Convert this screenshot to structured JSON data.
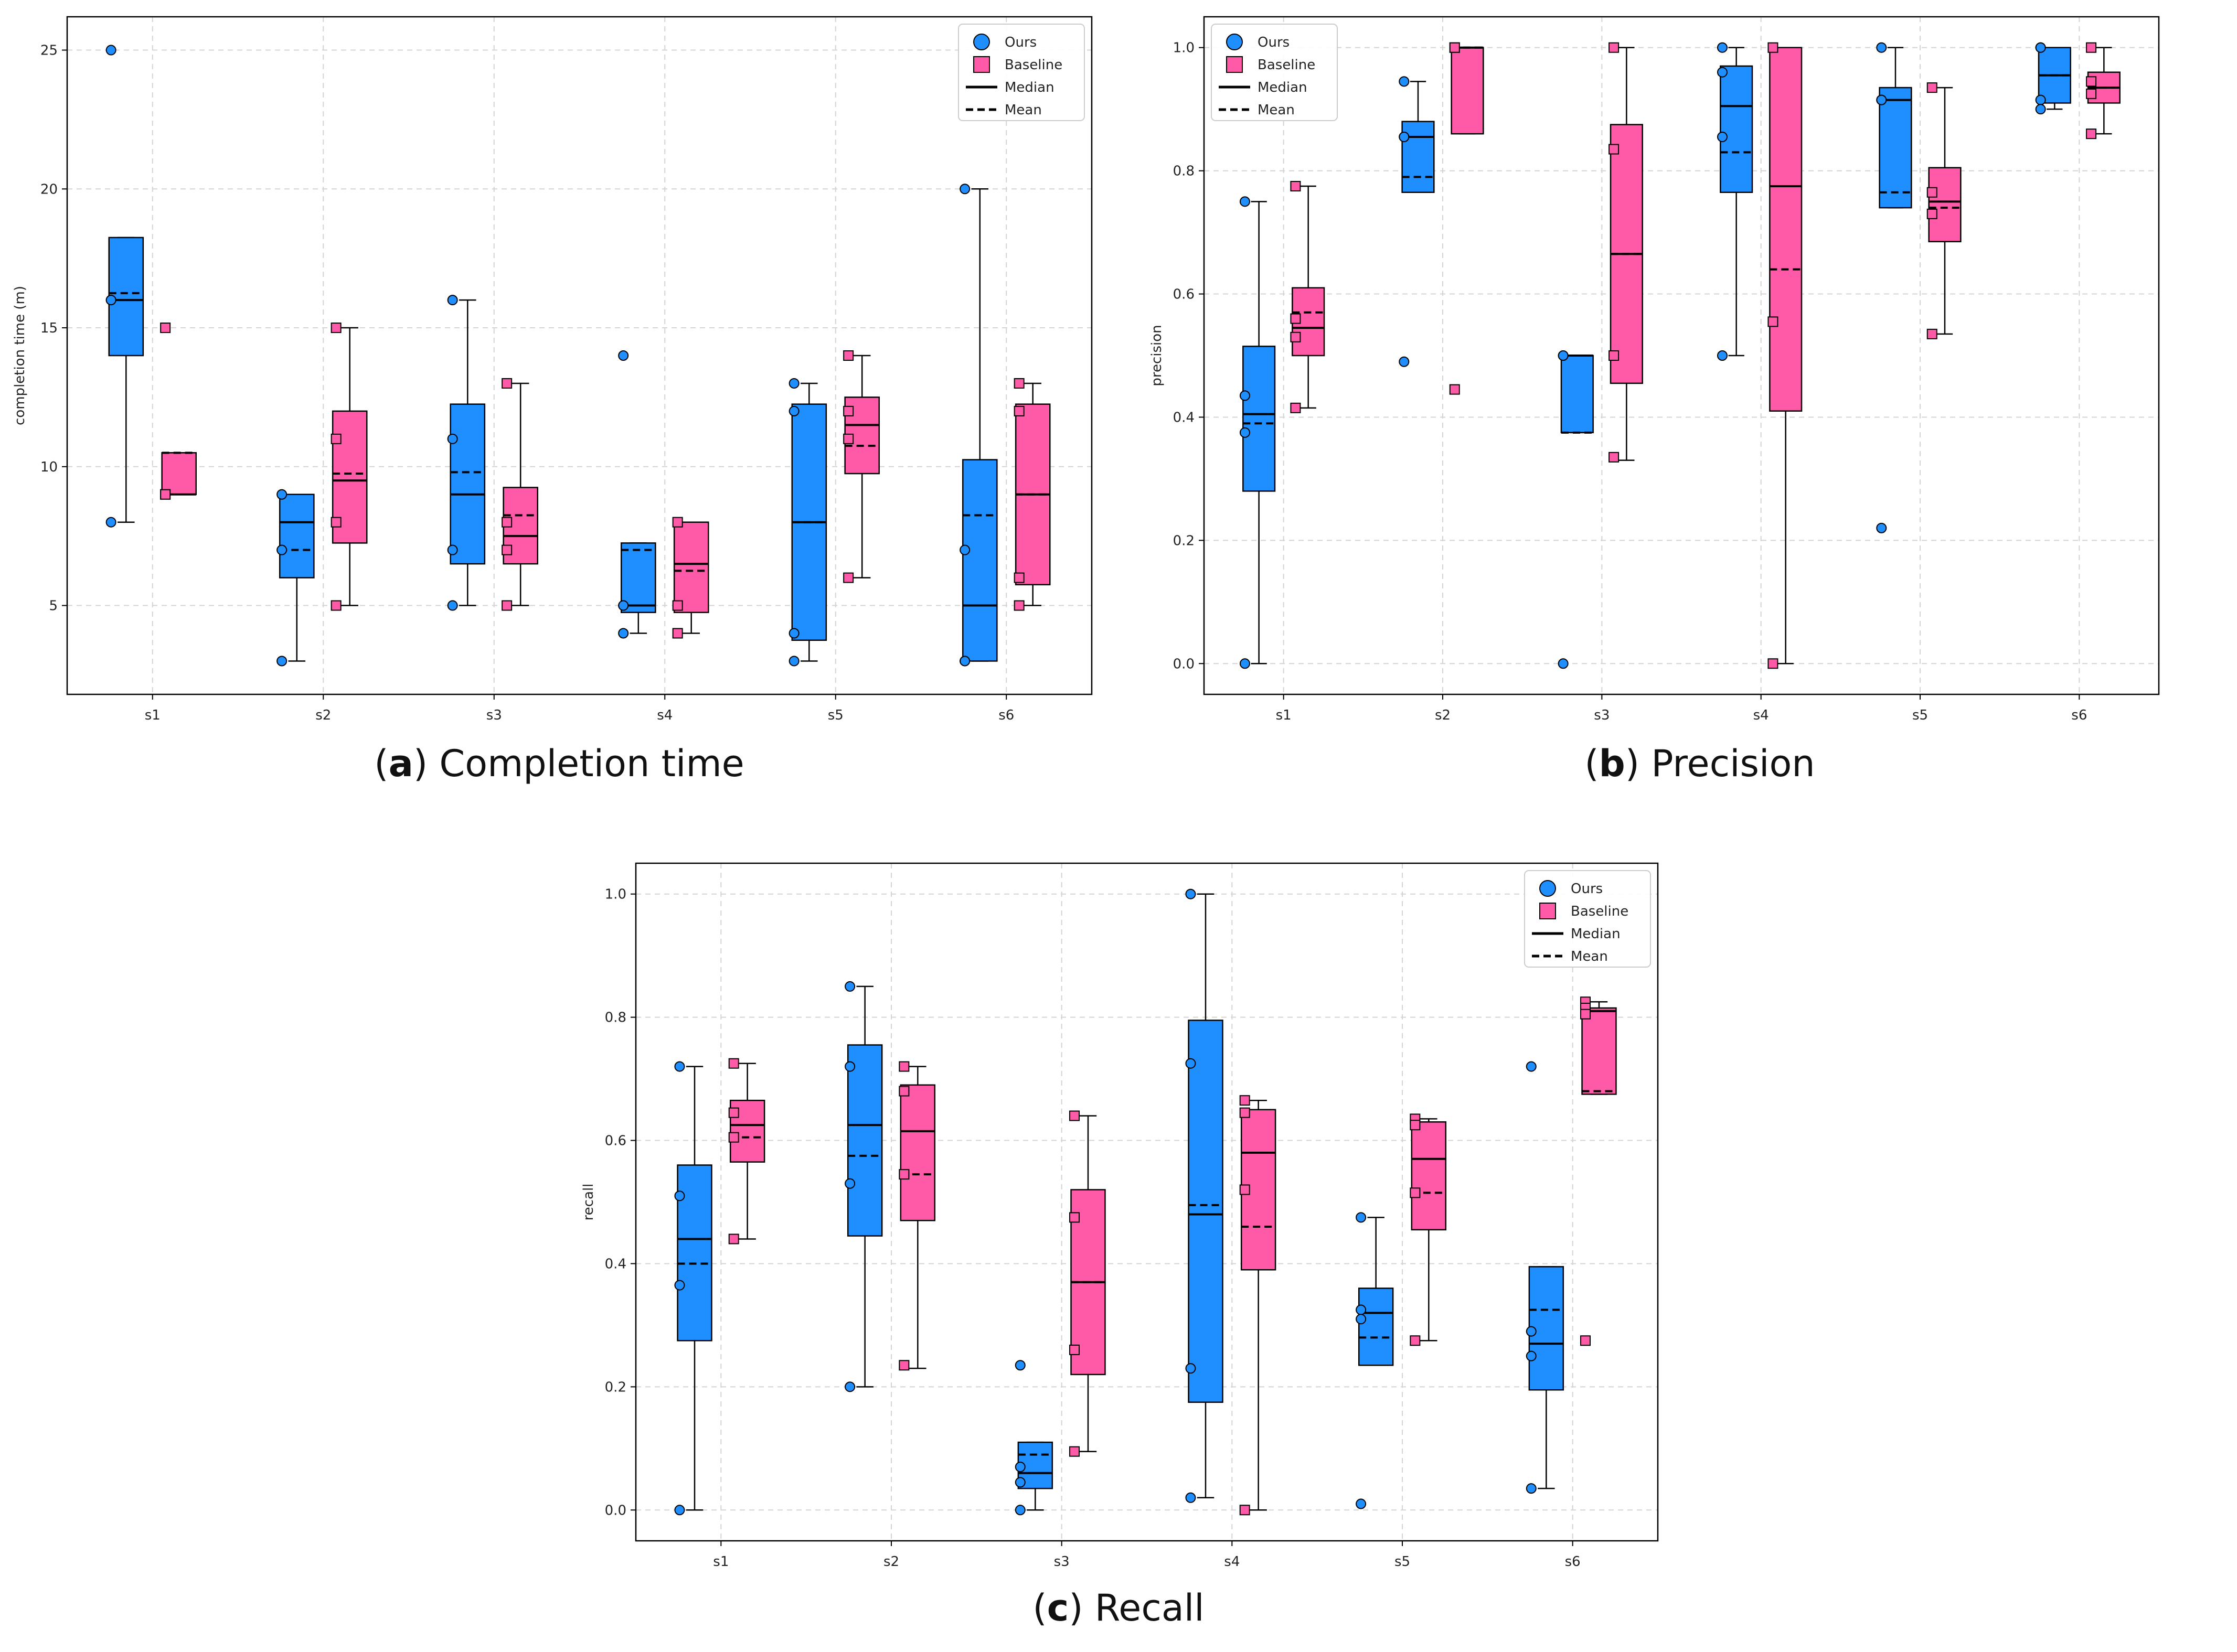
{
  "colors": {
    "ours": "#1f8fff",
    "baseline": "#ff5aa8",
    "grid": "#d4d4d4",
    "axis": "#000000"
  },
  "legend": {
    "ours": "Ours",
    "baseline": "Baseline",
    "median": "Median",
    "mean": "Mean"
  },
  "chart_data": [
    {
      "type": "box",
      "caption_letter": "a",
      "caption_text": " Completion time",
      "ylabel": "completion time (m)",
      "categories": [
        "s1",
        "s2",
        "s3",
        "s4",
        "s5",
        "s6"
      ],
      "ylim": [
        1.8,
        26.2
      ],
      "yticks": [
        5,
        10,
        15,
        20,
        25
      ],
      "yticklabels": [
        "5",
        "10",
        "15",
        "20",
        "25"
      ],
      "grid": true,
      "legend_loc": "top-right",
      "series": [
        {
          "name": "Ours",
          "boxes": [
            {
              "q1": 14,
              "median": 16,
              "q3": 18.25,
              "whislo": 8,
              "whishi": 18.25,
              "mean": 16.25,
              "points": [
                25,
                16,
                16,
                8
              ]
            },
            {
              "q1": 6,
              "median": 8,
              "q3": 9,
              "whislo": 3,
              "whishi": 9,
              "mean": 7,
              "points": [
                9,
                7,
                3
              ]
            },
            {
              "q1": 6.5,
              "median": 9,
              "q3": 12.25,
              "whislo": 5,
              "whishi": 16,
              "mean": 9.8,
              "points": [
                16,
                11,
                7,
                5
              ]
            },
            {
              "q1": 4.75,
              "median": 5,
              "q3": 7.25,
              "whislo": 4,
              "whishi": 7.25,
              "mean": 7,
              "points": [
                14,
                5,
                5,
                4
              ]
            },
            {
              "q1": 3.75,
              "median": 8,
              "q3": 12.25,
              "whislo": 3,
              "whishi": 13,
              "mean": 8,
              "points": [
                13,
                12,
                4,
                3
              ]
            },
            {
              "q1": 3,
              "median": 5,
              "q3": 10.25,
              "whislo": 3,
              "whishi": 20,
              "mean": 8.25,
              "points": [
                20,
                7,
                3,
                3
              ]
            }
          ]
        },
        {
          "name": "Baseline",
          "boxes": [
            {
              "q1": 9,
              "median": 9,
              "q3": 10.5,
              "whislo": 9,
              "whishi": 10.5,
              "mean": 10.5,
              "points": [
                15,
                9,
                9
              ]
            },
            {
              "q1": 7.25,
              "median": 9.5,
              "q3": 12,
              "whislo": 5,
              "whishi": 15,
              "mean": 9.75,
              "points": [
                15,
                11,
                8,
                5
              ]
            },
            {
              "q1": 6.5,
              "median": 7.5,
              "q3": 9.25,
              "whislo": 5,
              "whishi": 13,
              "mean": 8.25,
              "points": [
                13,
                8,
                7,
                5
              ]
            },
            {
              "q1": 4.75,
              "median": 6.5,
              "q3": 8,
              "whislo": 4,
              "whishi": 8,
              "mean": 6.25,
              "points": [
                8,
                5,
                4
              ]
            },
            {
              "q1": 9.75,
              "median": 11.5,
              "q3": 12.5,
              "whislo": 6,
              "whishi": 14,
              "mean": 10.75,
              "points": [
                14,
                12,
                11,
                6
              ]
            },
            {
              "q1": 5.75,
              "median": 9,
              "q3": 12.25,
              "whislo": 5,
              "whishi": 13,
              "mean": 9,
              "points": [
                13,
                12,
                6,
                5
              ]
            }
          ]
        }
      ]
    },
    {
      "type": "box",
      "caption_letter": "b",
      "caption_text": " Precision",
      "ylabel": "precision",
      "categories": [
        "s1",
        "s2",
        "s3",
        "s4",
        "s5",
        "s6"
      ],
      "ylim": [
        -0.05,
        1.05
      ],
      "yticks": [
        0,
        0.2,
        0.4,
        0.6,
        0.8,
        1.0
      ],
      "yticklabels": [
        "0.0",
        "0.2",
        "0.4",
        "0.6",
        "0.8",
        "1.0"
      ],
      "grid": true,
      "legend_loc": "top-left",
      "series": [
        {
          "name": "Ours",
          "boxes": [
            {
              "q1": 0.28,
              "median": 0.405,
              "q3": 0.515,
              "whislo": 0,
              "whishi": 0.75,
              "mean": 0.39,
              "points": [
                0.75,
                0.435,
                0.375,
                0
              ]
            },
            {
              "q1": 0.765,
              "median": 0.855,
              "q3": 0.88,
              "whislo": 0.765,
              "whishi": 0.945,
              "mean": 0.79,
              "points": [
                0.945,
                0.855,
                0.855,
                0.49
              ]
            },
            {
              "q1": 0.375,
              "median": 0.5,
              "q3": 0.5,
              "whislo": 0.375,
              "whishi": 0.5,
              "mean": 0.375,
              "points": [
                0.5,
                0.5,
                0
              ]
            },
            {
              "q1": 0.765,
              "median": 0.905,
              "q3": 0.97,
              "whislo": 0.5,
              "whishi": 1.0,
              "mean": 0.83,
              "points": [
                1.0,
                0.96,
                0.855,
                0.5
              ]
            },
            {
              "q1": 0.74,
              "median": 0.915,
              "q3": 0.935,
              "whislo": 0.74,
              "whishi": 1.0,
              "mean": 0.765,
              "points": [
                1.0,
                0.915,
                0.915,
                0.22
              ]
            },
            {
              "q1": 0.91,
              "median": 0.955,
              "q3": 1.0,
              "whislo": 0.9,
              "whishi": 1.0,
              "mean": 0.955,
              "points": [
                1.0,
                1.0,
                0.915,
                0.9
              ]
            }
          ]
        },
        {
          "name": "Baseline",
          "boxes": [
            {
              "q1": 0.5,
              "median": 0.545,
              "q3": 0.61,
              "whislo": 0.415,
              "whishi": 0.775,
              "mean": 0.57,
              "points": [
                0.775,
                0.56,
                0.53,
                0.415
              ]
            },
            {
              "q1": 0.86,
              "median": 1.0,
              "q3": 1.0,
              "whislo": 0.86,
              "whishi": 1.0,
              "mean": 1.0,
              "points": [
                1.0,
                1.0,
                0.445
              ]
            },
            {
              "q1": 0.455,
              "median": 0.665,
              "q3": 0.875,
              "whislo": 0.33,
              "whishi": 1.0,
              "mean": 0.665,
              "points": [
                1.0,
                0.835,
                0.5,
                0.335
              ]
            },
            {
              "q1": 0.41,
              "median": 0.775,
              "q3": 1.0,
              "whislo": 0,
              "whishi": 1.0,
              "mean": 0.64,
              "points": [
                1.0,
                0.555,
                0
              ]
            },
            {
              "q1": 0.685,
              "median": 0.75,
              "q3": 0.805,
              "whislo": 0.535,
              "whishi": 0.935,
              "mean": 0.74,
              "points": [
                0.935,
                0.765,
                0.73,
                0.535
              ]
            },
            {
              "q1": 0.91,
              "median": 0.935,
              "q3": 0.96,
              "whislo": 0.86,
              "whishi": 1.0,
              "mean": 0.935,
              "points": [
                1.0,
                0.945,
                0.925,
                0.86
              ]
            }
          ]
        }
      ]
    },
    {
      "type": "box",
      "caption_letter": "c",
      "caption_text": " Recall",
      "ylabel": "recall",
      "categories": [
        "s1",
        "s2",
        "s3",
        "s4",
        "s5",
        "s6"
      ],
      "ylim": [
        -0.05,
        1.05
      ],
      "yticks": [
        0,
        0.2,
        0.4,
        0.6,
        0.8,
        1.0
      ],
      "yticklabels": [
        "0.0",
        "0.2",
        "0.4",
        "0.6",
        "0.8",
        "1.0"
      ],
      "grid": true,
      "legend_loc": "top-right",
      "series": [
        {
          "name": "Ours",
          "boxes": [
            {
              "q1": 0.275,
              "median": 0.44,
              "q3": 0.56,
              "whislo": 0,
              "whishi": 0.72,
              "mean": 0.4,
              "points": [
                0.72,
                0.51,
                0.365,
                0
              ]
            },
            {
              "q1": 0.445,
              "median": 0.625,
              "q3": 0.755,
              "whislo": 0.2,
              "whishi": 0.85,
              "mean": 0.575,
              "points": [
                0.85,
                0.72,
                0.53,
                0.2
              ]
            },
            {
              "q1": 0.035,
              "median": 0.06,
              "q3": 0.11,
              "whislo": 0,
              "whishi": 0.11,
              "mean": 0.09,
              "points": [
                0.235,
                0.07,
                0.045,
                0
              ]
            },
            {
              "q1": 0.175,
              "median": 0.48,
              "q3": 0.795,
              "whislo": 0.02,
              "whishi": 1.0,
              "mean": 0.495,
              "points": [
                1.0,
                0.725,
                0.23,
                0.02
              ]
            },
            {
              "q1": 0.235,
              "median": 0.32,
              "q3": 0.36,
              "whislo": 0.235,
              "whishi": 0.475,
              "mean": 0.28,
              "points": [
                0.475,
                0.325,
                0.31,
                0.01
              ]
            },
            {
              "q1": 0.195,
              "median": 0.27,
              "q3": 0.395,
              "whislo": 0.035,
              "whishi": 0.395,
              "mean": 0.325,
              "points": [
                0.72,
                0.29,
                0.25,
                0.035
              ]
            }
          ]
        },
        {
          "name": "Baseline",
          "boxes": [
            {
              "q1": 0.565,
              "median": 0.625,
              "q3": 0.665,
              "whislo": 0.44,
              "whishi": 0.725,
              "mean": 0.605,
              "points": [
                0.725,
                0.645,
                0.605,
                0.44
              ]
            },
            {
              "q1": 0.47,
              "median": 0.615,
              "q3": 0.69,
              "whislo": 0.23,
              "whishi": 0.72,
              "mean": 0.545,
              "points": [
                0.72,
                0.68,
                0.545,
                0.235
              ]
            },
            {
              "q1": 0.22,
              "median": 0.37,
              "q3": 0.52,
              "whislo": 0.095,
              "whishi": 0.64,
              "mean": 0.37,
              "points": [
                0.64,
                0.475,
                0.26,
                0.095
              ]
            },
            {
              "q1": 0.39,
              "median": 0.58,
              "q3": 0.65,
              "whislo": 0,
              "whishi": 0.665,
              "mean": 0.46,
              "points": [
                0.665,
                0.645,
                0.52,
                0
              ]
            },
            {
              "q1": 0.455,
              "median": 0.57,
              "q3": 0.63,
              "whislo": 0.275,
              "whishi": 0.635,
              "mean": 0.515,
              "points": [
                0.635,
                0.625,
                0.515,
                0.275
              ]
            },
            {
              "q1": 0.675,
              "median": 0.81,
              "q3": 0.815,
              "whislo": 0.675,
              "whishi": 0.825,
              "mean": 0.68,
              "points": [
                0.825,
                0.815,
                0.805,
                0.275
              ]
            }
          ]
        }
      ]
    }
  ]
}
